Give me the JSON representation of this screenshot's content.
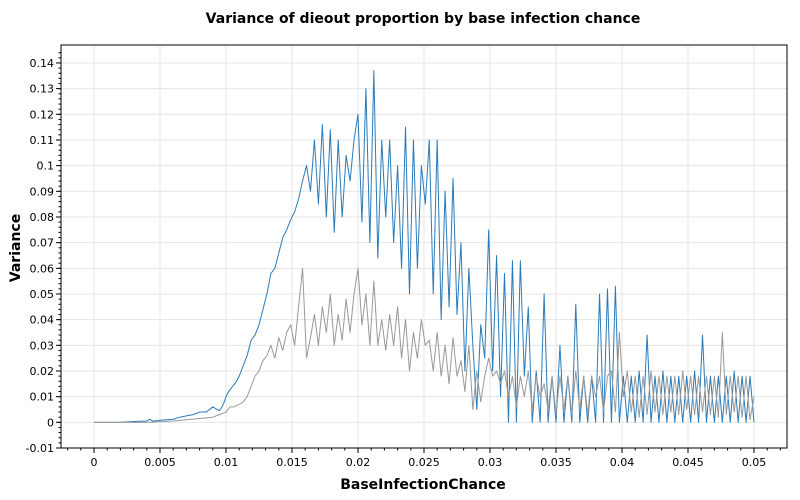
{
  "chart_data": {
    "type": "line",
    "title": "Variance of dieout proportion by base infection chance",
    "xlabel": "BaseInfectionChance",
    "ylabel": "Variance",
    "xlim": [
      -0.0025,
      0.0525
    ],
    "ylim": [
      -0.01,
      0.147
    ],
    "grid": true,
    "x_ticks": [
      "0",
      "0.005",
      "0.01",
      "0.015",
      "0.02",
      "0.025",
      "0.03",
      "0.035",
      "0.04",
      "0.045",
      "0.05"
    ],
    "y_ticks": [
      "-0.01",
      "0",
      "0.01",
      "0.02",
      "0.03",
      "0.04",
      "0.05",
      "0.06",
      "0.07",
      "0.08",
      "0.09",
      "0.1",
      "0.11",
      "0.12",
      "0.13",
      "0.14"
    ],
    "series": [
      {
        "color": "#2b7bba",
        "x": [
          0,
          0.001,
          0.002,
          0.003,
          0.004,
          0.0042,
          0.0045,
          0.005,
          0.006,
          0.0065,
          0.007,
          0.0075,
          0.008,
          0.0085,
          0.009,
          0.0095,
          0.0098,
          0.01,
          0.0102,
          0.0105,
          0.0108,
          0.011,
          0.0113,
          0.0116,
          0.0119,
          0.0122,
          0.0125,
          0.0128,
          0.0131,
          0.0134,
          0.0137,
          0.014,
          0.0143,
          0.0146,
          0.0149,
          0.0152,
          0.0155,
          0.0158,
          0.0161,
          0.0164,
          0.0167,
          0.017,
          0.0173,
          0.0176,
          0.0179,
          0.0182,
          0.0185,
          0.0188,
          0.0191,
          0.0194,
          0.0197,
          0.02,
          0.0203,
          0.0206,
          0.0209,
          0.0212,
          0.0215,
          0.0218,
          0.0221,
          0.0224,
          0.0227,
          0.023,
          0.0233,
          0.0236,
          0.0239,
          0.0242,
          0.0245,
          0.0248,
          0.0251,
          0.0254,
          0.0257,
          0.026,
          0.0263,
          0.0266,
          0.0269,
          0.0272,
          0.0275,
          0.0278,
          0.0281,
          0.0284,
          0.0287,
          0.029,
          0.0293,
          0.0296,
          0.0299,
          0.0302,
          0.0305,
          0.0308,
          0.0311,
          0.0314,
          0.0317,
          0.032,
          0.0323,
          0.0326,
          0.0329,
          0.0332,
          0.0335,
          0.0338,
          0.0341,
          0.0344,
          0.0347,
          0.035,
          0.0353,
          0.0356,
          0.0359,
          0.0362,
          0.0365,
          0.0368,
          0.0371,
          0.0374,
          0.0377,
          0.038,
          0.0383,
          0.0386,
          0.0389,
          0.0392,
          0.0395,
          0.0398,
          0.0401,
          0.0404,
          0.0407,
          0.041,
          0.0413,
          0.0416,
          0.0419,
          0.0422,
          0.0425,
          0.0428,
          0.0431,
          0.0434,
          0.0437,
          0.044,
          0.0443,
          0.0446,
          0.0449,
          0.0452,
          0.0455,
          0.0458,
          0.0461,
          0.0464,
          0.0467,
          0.047,
          0.0473,
          0.0476,
          0.0479,
          0.0482,
          0.0485,
          0.0488,
          0.0491,
          0.0494,
          0.0497,
          0.05
        ],
        "values": [
          0,
          0,
          0,
          0.0003,
          0.0005,
          0.0012,
          0.0004,
          0.0008,
          0.0012,
          0.002,
          0.0025,
          0.003,
          0.004,
          0.004,
          0.006,
          0.0045,
          0.007,
          0.01,
          0.012,
          0.014,
          0.016,
          0.018,
          0.022,
          0.026,
          0.032,
          0.034,
          0.038,
          0.044,
          0.05,
          0.058,
          0.06,
          0.066,
          0.072,
          0.075,
          0.079,
          0.082,
          0.087,
          0.094,
          0.1,
          0.09,
          0.11,
          0.085,
          0.116,
          0.08,
          0.114,
          0.074,
          0.11,
          0.08,
          0.104,
          0.094,
          0.11,
          0.12,
          0.078,
          0.13,
          0.07,
          0.137,
          0.064,
          0.11,
          0.08,
          0.11,
          0.07,
          0.1,
          0.06,
          0.115,
          0.05,
          0.11,
          0.06,
          0.1,
          0.085,
          0.11,
          0.05,
          0.11,
          0.04,
          0.09,
          0.045,
          0.095,
          0.042,
          0.07,
          0.02,
          0.06,
          0.03,
          0.005,
          0.038,
          0.025,
          0.075,
          0.02,
          0.065,
          0.01,
          0.058,
          0.0,
          0.063,
          0.0,
          0.063,
          0.018,
          0.045,
          0.0,
          0.02,
          0.0,
          0.05,
          0.0,
          0.018,
          0.0,
          0.03,
          0.0,
          0.018,
          0.0,
          0.046,
          0.0,
          0.018,
          0.0,
          0.018,
          0.0,
          0.05,
          0.0,
          0.052,
          0.0,
          0.053,
          0.0,
          0.018,
          0.0,
          0.018,
          0.0,
          0.02,
          0.0,
          0.034,
          0.0,
          0.018,
          0.0,
          0.02,
          0.0,
          0.018,
          0.0,
          0.018,
          0.0,
          0.018,
          0.0,
          0.02,
          0.0,
          0.034,
          0.0,
          0.018,
          0.0,
          0.018,
          0.0,
          0.018,
          0.0,
          0.02,
          0.0,
          0.018,
          0.0,
          0.018,
          0.0
        ]
      },
      {
        "color": "#999999",
        "x": [
          0,
          0.002,
          0.004,
          0.006,
          0.007,
          0.008,
          0.009,
          0.0095,
          0.01,
          0.0103,
          0.0106,
          0.011,
          0.0113,
          0.0116,
          0.0119,
          0.0122,
          0.0125,
          0.0128,
          0.0131,
          0.0134,
          0.0137,
          0.014,
          0.0143,
          0.0146,
          0.0149,
          0.0152,
          0.0155,
          0.0158,
          0.0161,
          0.0164,
          0.0167,
          0.017,
          0.0173,
          0.0176,
          0.0179,
          0.0182,
          0.0185,
          0.0188,
          0.0191,
          0.0194,
          0.0197,
          0.02,
          0.0203,
          0.0206,
          0.0209,
          0.0212,
          0.0215,
          0.0218,
          0.0221,
          0.0224,
          0.0227,
          0.023,
          0.0233,
          0.0236,
          0.0239,
          0.0242,
          0.0245,
          0.0248,
          0.0251,
          0.0254,
          0.0257,
          0.026,
          0.0263,
          0.0266,
          0.0269,
          0.0272,
          0.0275,
          0.0278,
          0.0281,
          0.0284,
          0.0287,
          0.029,
          0.0293,
          0.0296,
          0.0299,
          0.0302,
          0.0305,
          0.0308,
          0.0311,
          0.0314,
          0.0317,
          0.032,
          0.0323,
          0.0326,
          0.0329,
          0.0332,
          0.0335,
          0.0338,
          0.0341,
          0.0344,
          0.0347,
          0.035,
          0.0353,
          0.0356,
          0.0359,
          0.0362,
          0.0365,
          0.0368,
          0.0371,
          0.0374,
          0.0377,
          0.038,
          0.0383,
          0.0386,
          0.0389,
          0.0392,
          0.0395,
          0.0398,
          0.0401,
          0.0404,
          0.0407,
          0.041,
          0.0413,
          0.0416,
          0.0419,
          0.0422,
          0.0425,
          0.0428,
          0.0431,
          0.0434,
          0.0437,
          0.044,
          0.0443,
          0.0446,
          0.0449,
          0.0452,
          0.0455,
          0.0458,
          0.0461,
          0.0464,
          0.0467,
          0.047,
          0.0473,
          0.0476,
          0.0479,
          0.0482,
          0.0485,
          0.0488,
          0.0491,
          0.0494,
          0.0497,
          0.05
        ],
        "values": [
          0,
          0,
          0,
          0.0005,
          0.001,
          0.0015,
          0.002,
          0.003,
          0.004,
          0.006,
          0.006,
          0.007,
          0.008,
          0.01,
          0.014,
          0.018,
          0.02,
          0.024,
          0.026,
          0.03,
          0.025,
          0.033,
          0.028,
          0.035,
          0.038,
          0.03,
          0.045,
          0.06,
          0.025,
          0.033,
          0.042,
          0.03,
          0.045,
          0.035,
          0.05,
          0.03,
          0.042,
          0.032,
          0.048,
          0.035,
          0.05,
          0.06,
          0.038,
          0.05,
          0.03,
          0.055,
          0.03,
          0.04,
          0.028,
          0.042,
          0.03,
          0.045,
          0.025,
          0.04,
          0.02,
          0.035,
          0.025,
          0.04,
          0.03,
          0.032,
          0.02,
          0.035,
          0.018,
          0.03,
          0.015,
          0.033,
          0.018,
          0.024,
          0.012,
          0.03,
          0.005,
          0.02,
          0.008,
          0.018,
          0.025,
          0.018,
          0.02,
          0.015,
          0.02,
          0.01,
          0.018,
          0.006,
          0.018,
          0.01,
          0.02,
          0.005,
          0.018,
          0.01,
          0.015,
          0.005,
          0.018,
          0.003,
          0.018,
          0.005,
          0.018,
          0.003,
          0.02,
          0.005,
          0.018,
          0.003,
          0.018,
          0.01,
          0.018,
          0.004,
          0.018,
          0.02,
          0.004,
          0.035,
          0.01,
          0.02,
          0.004,
          0.018,
          0.002,
          0.018,
          0.003,
          0.02,
          0.004,
          0.018,
          0.003,
          0.018,
          0.004,
          0.018,
          0.003,
          0.02,
          0.005,
          0.018,
          0.003,
          0.018,
          0.004,
          0.018,
          0.003,
          0.018,
          0.002,
          0.035,
          0.003,
          0.018,
          0.004,
          0.018,
          0.002,
          0.018,
          0.001,
          0.01
        ]
      }
    ]
  }
}
